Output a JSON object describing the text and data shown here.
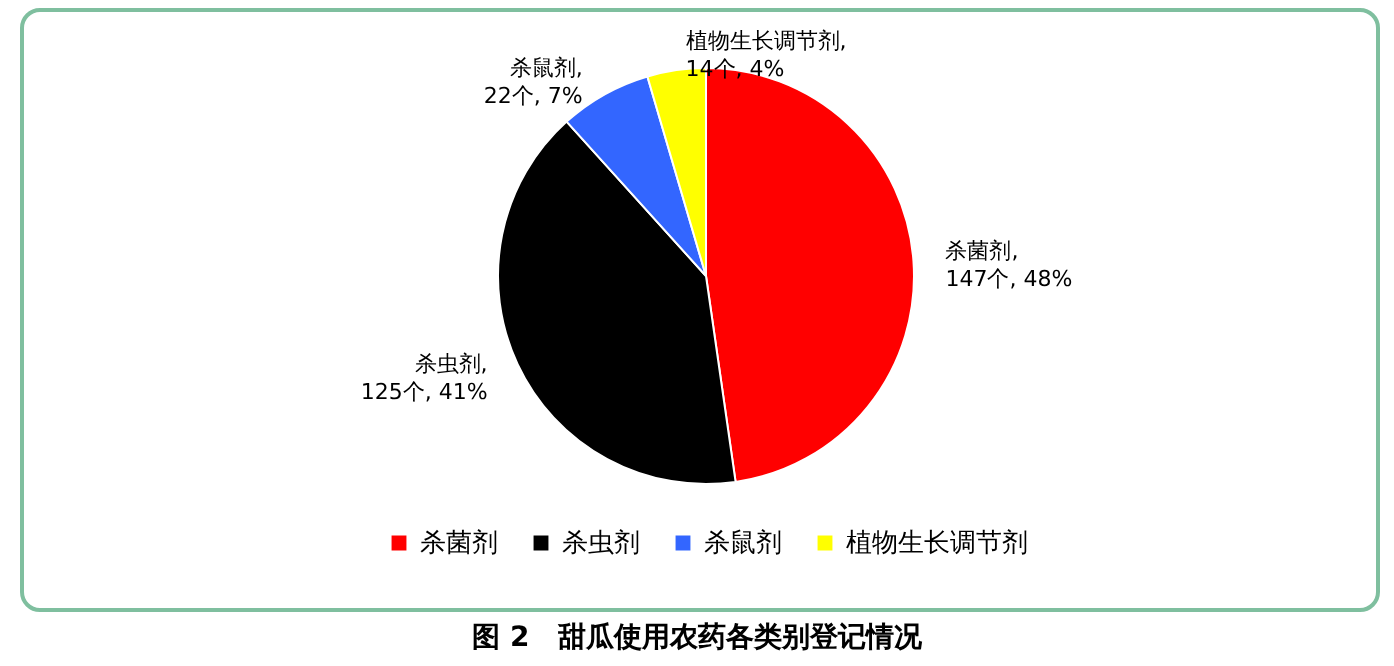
{
  "chart_data": {
    "type": "pie",
    "categories": [
      "杀菌剂",
      "杀虫剂",
      "杀鼠剂",
      "植物生长调节剂"
    ],
    "values": [
      147,
      125,
      22,
      14
    ],
    "colors": [
      "#ff0000",
      "#000000",
      "#3366ff",
      "#ffff00"
    ],
    "value_labels": [
      "杀菌剂, 147个, 48%",
      "杀虫剂, 125个, 41%",
      "杀鼠剂, 22个, 7%",
      "植物生长调节剂, 14个, 4%"
    ],
    "legend": "bottom",
    "annotations": [
      "图 2　甜瓜使用农药各类别登记情况"
    ]
  }
}
